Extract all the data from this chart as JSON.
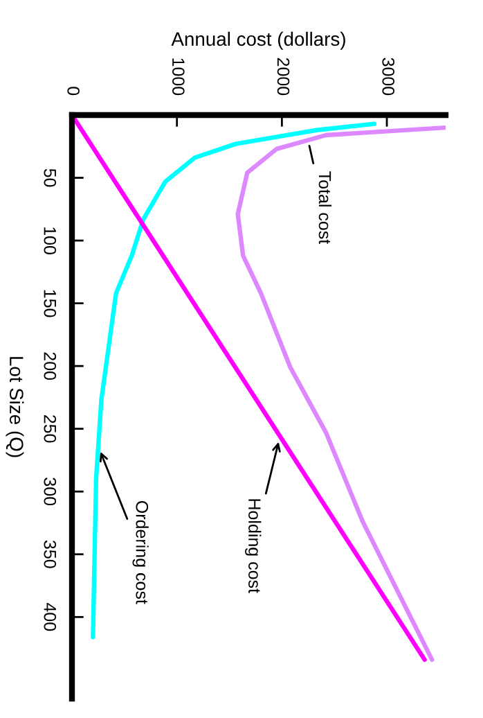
{
  "chart_data": {
    "type": "line",
    "orientation": "horizontal",
    "xlabel": "Annual cost (dollars)",
    "ylabel": "Lot Size (Q)",
    "xlim": [
      0,
      3560
    ],
    "xticks": [
      0,
      1000,
      2000,
      3000
    ],
    "ylim": [
      465,
      0
    ],
    "yticks": [
      50,
      100,
      150,
      200,
      250,
      300,
      350,
      400
    ],
    "grid": false,
    "marker": "none",
    "line_style": "solid",
    "series": [
      {
        "name": "Ordering cost",
        "color": "#00ffff",
        "x": [
          7,
          12,
          23,
          34,
          53,
          83,
          112,
          142,
          227,
          290,
          416
        ],
        "values": [
          2880,
          2330,
          1560,
          1170,
          890,
          680,
          570,
          420,
          280,
          230,
          200
        ]
      },
      {
        "name": "Holding cost",
        "color": "#ff00ff",
        "x": [
          0,
          434
        ],
        "values": [
          0,
          3360
        ]
      },
      {
        "name": "Total cost",
        "color": "#dd88ff",
        "x": [
          10,
          16,
          27,
          46,
          79,
          112,
          142,
          201,
          253,
          324,
          434
        ],
        "values": [
          3560,
          2420,
          1950,
          1670,
          1580,
          1630,
          1800,
          2080,
          2420,
          2770,
          3430
        ]
      }
    ]
  }
}
